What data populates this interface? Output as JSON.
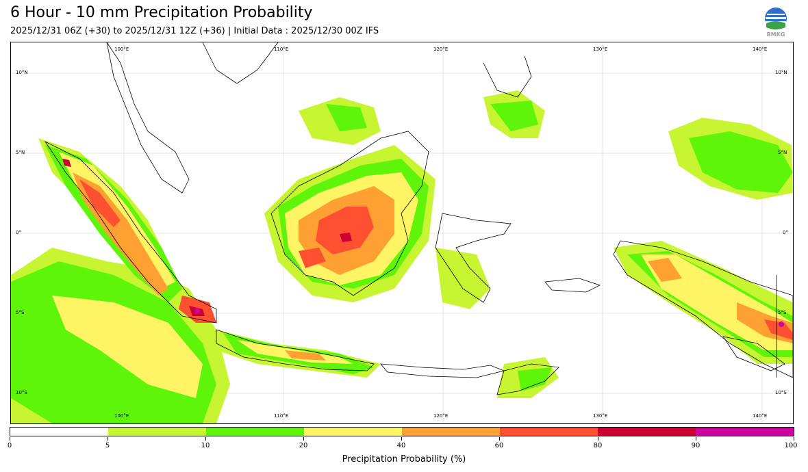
{
  "title": "6 Hour - 10 mm Precipitation Probability",
  "subtitle": "2025/12/31 06Z (+30) to 2025/12/31 12Z (+36) | Initial Data : 2025/12/30 00Z IFS",
  "logo_text": "BMKG",
  "map": {
    "lon_labels": [
      "100°E",
      "110°E",
      "120°E",
      "130°E",
      "140°E"
    ],
    "lat_labels": [
      "10°N",
      "5°N",
      "0°",
      "5°S",
      "10°S"
    ]
  },
  "colorbar": {
    "title": "Precipitation Probability (%)",
    "ticks": [
      "0",
      "5",
      "10",
      "20",
      "40",
      "60",
      "80",
      "90",
      "100"
    ],
    "colors": [
      "#ffffff",
      "#c8f532",
      "#5ff50a",
      "#fff564",
      "#ffa032",
      "#ff5032",
      "#cd0032",
      "#cd00a0"
    ]
  }
}
